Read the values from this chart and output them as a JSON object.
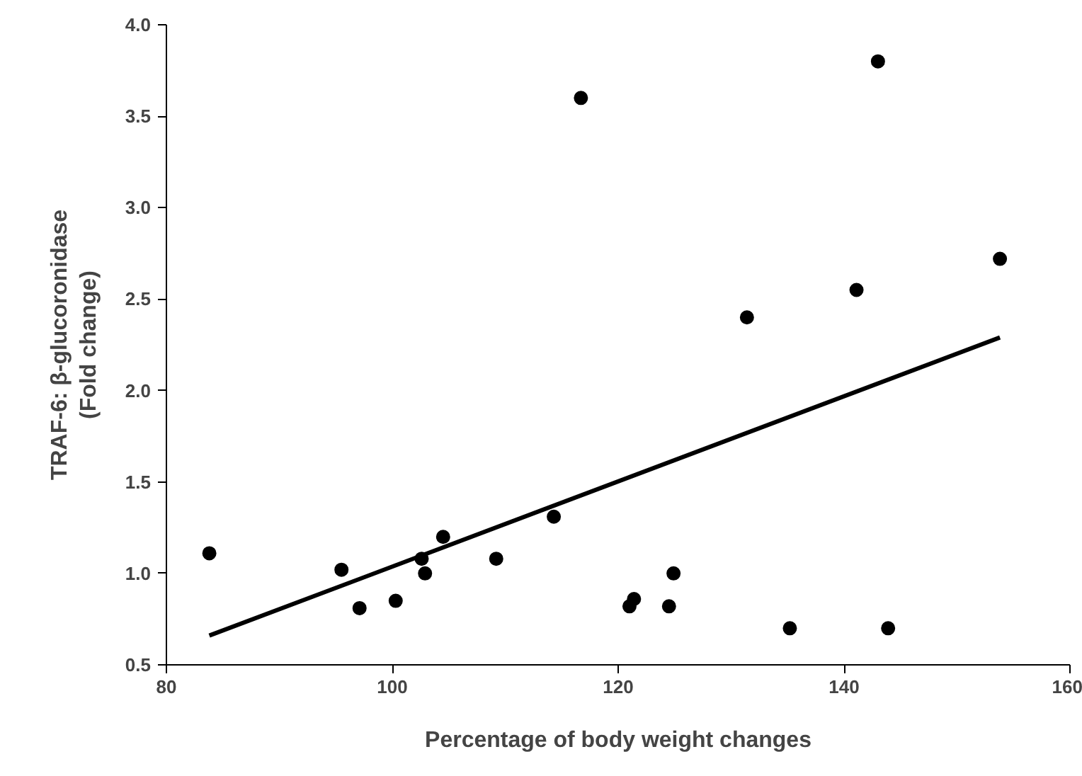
{
  "chart_data": {
    "type": "scatter",
    "xlabel": "Percentage of body weight changes",
    "ylabel": "TRAF-6: β-glucoronidase\n(Fold change)",
    "x": [
      83.8,
      95.5,
      97.1,
      100.3,
      102.6,
      102.9,
      104.5,
      109.2,
      114.3,
      116.7,
      121.0,
      121.4,
      124.9,
      124.5,
      131.4,
      135.2,
      141.1,
      143.0,
      143.9,
      153.8
    ],
    "series": [
      {
        "marker": "circle",
        "color": "#000000",
        "values": [
          1.11,
          1.02,
          0.81,
          0.85,
          1.08,
          1.0,
          1.2,
          1.08,
          1.31,
          3.6,
          0.82,
          0.86,
          1.0,
          0.82,
          2.4,
          0.7,
          2.55,
          3.8,
          0.7,
          2.72
        ]
      },
      {
        "type": "line",
        "marker": "none",
        "color": "#000000",
        "x": [
          83.8,
          153.8
        ],
        "values": [
          0.66,
          2.29
        ]
      }
    ],
    "xlim": [
      80,
      160
    ],
    "ylim": [
      0.5,
      4.0
    ],
    "xticks": [
      80,
      100,
      120,
      140,
      160
    ],
    "yticks": [
      {
        "value": 0.5,
        "label": "0.5"
      },
      {
        "value": 1.0,
        "label": "1.0"
      },
      {
        "value": 1.5,
        "label": "1.5"
      },
      {
        "value": 2.0,
        "label": "2.0"
      },
      {
        "value": 2.5,
        "label": "2.5"
      },
      {
        "value": 3.0,
        "label": "3.0"
      },
      {
        "value": 3.5,
        "label": "3.5"
      },
      {
        "value": 4.0,
        "label": "4.0"
      }
    ],
    "grid": false
  }
}
